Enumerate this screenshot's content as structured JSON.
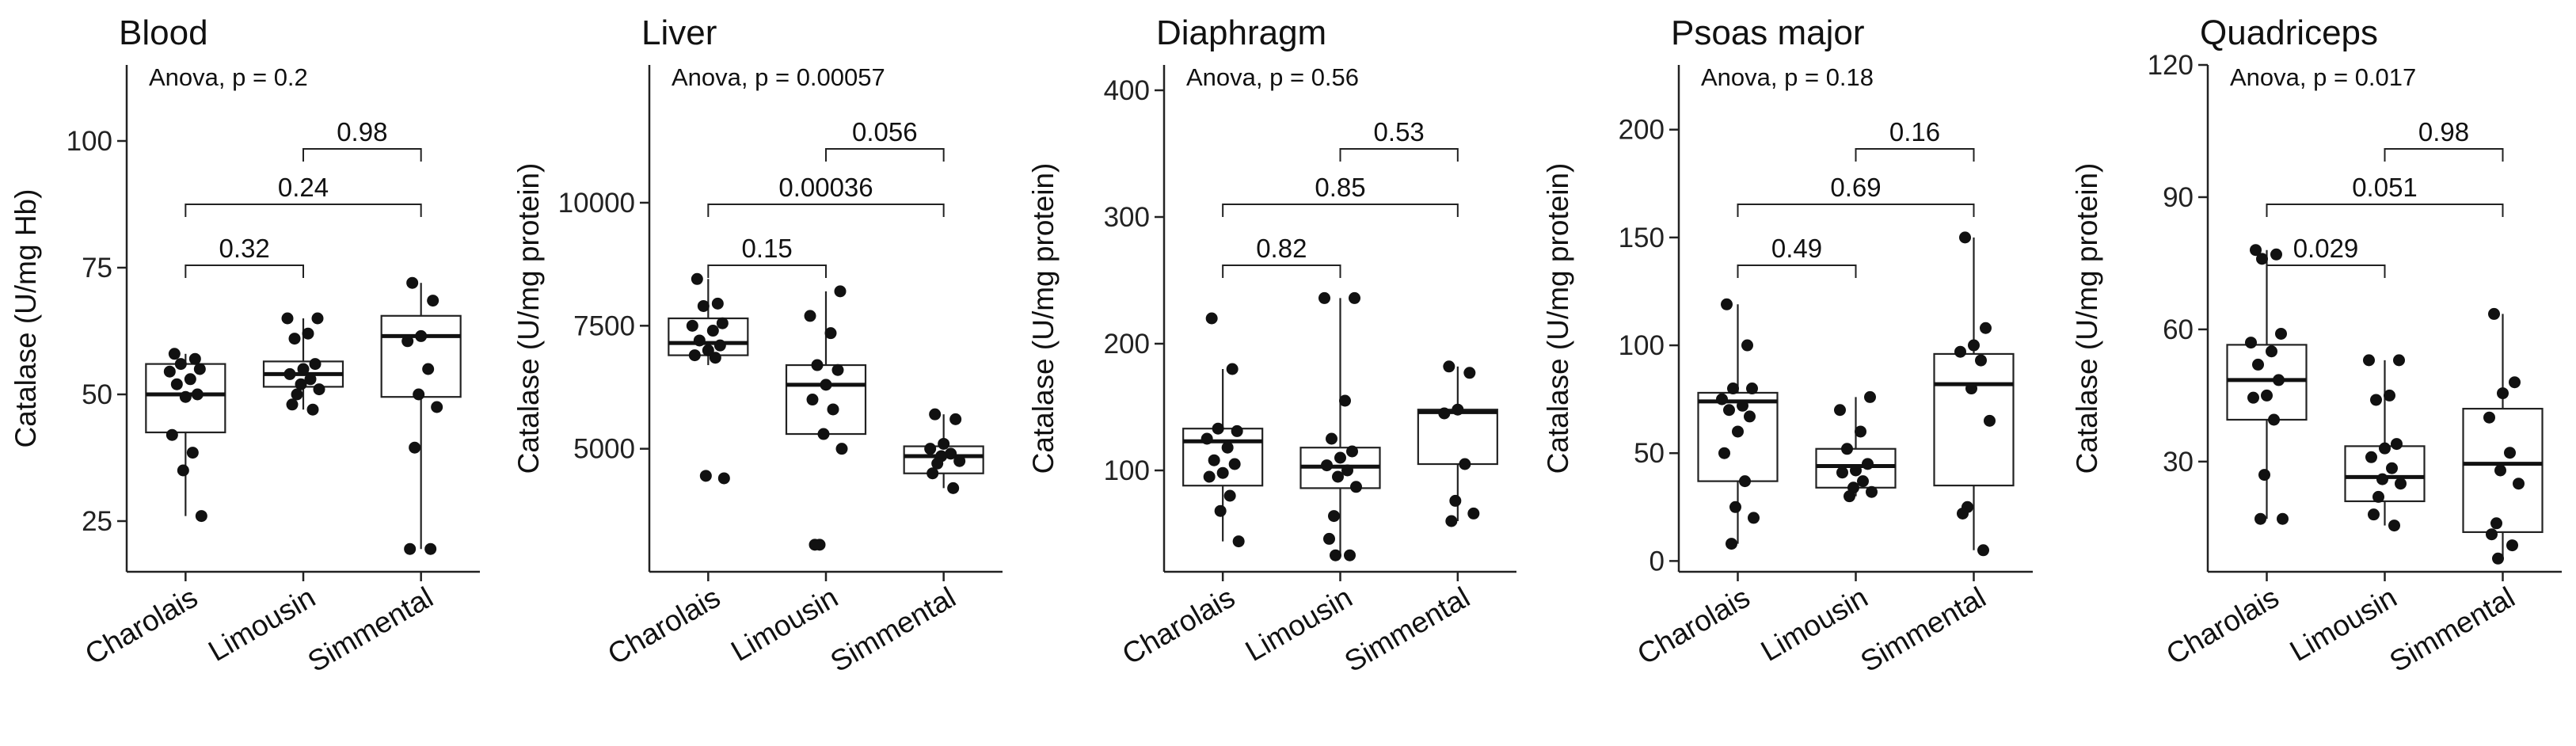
{
  "chart_data": [
    {
      "type": "boxplot",
      "title": "Blood",
      "ylabel": "Catalase (U/mg Hb)",
      "ylim": [
        15,
        115
      ],
      "yticks": [
        "25",
        "50",
        "75",
        "100"
      ],
      "categories": [
        "Charolais",
        "Limousin",
        "Simmental"
      ],
      "anova": "Anova, p = 0.2",
      "boxes": [
        {
          "min": 26,
          "q1": 42.5,
          "median": 50,
          "q3": 56,
          "max": 58
        },
        {
          "min": 47,
          "q1": 51.5,
          "median": 54,
          "q3": 56.5,
          "max": 65
        },
        {
          "min": 19.5,
          "q1": 49.5,
          "median": 61.5,
          "q3": 65.5,
          "max": 72
        }
      ],
      "points": [
        [
          58,
          57,
          56,
          55,
          54.5,
          53,
          52,
          50,
          49.5,
          42,
          38.5,
          35,
          26
        ],
        [
          65,
          65,
          62,
          61,
          56,
          55,
          54,
          53,
          52,
          51,
          50,
          48,
          47
        ],
        [
          72,
          68.5,
          61.5,
          60.5,
          55,
          50,
          47.5,
          39.5,
          19.5,
          19.5
        ]
      ],
      "comparisons": [
        {
          "from": 0,
          "to": 1,
          "label": "0.32",
          "level": 1
        },
        {
          "from": 0,
          "to": 2,
          "label": "0.24",
          "level": 2
        },
        {
          "from": 1,
          "to": 2,
          "label": "0.98",
          "level": 3
        }
      ]
    },
    {
      "type": "boxplot",
      "title": "Liver",
      "ylabel": "Catalase (U/mg protein)",
      "ylim": [
        2500,
        12800
      ],
      "yticks": [
        "5000",
        "7500",
        "10000"
      ],
      "categories": [
        "Charolais",
        "Limousin",
        "Simmental"
      ],
      "anova": "Anova, p = 0.00057",
      "boxes": [
        {
          "min": 6700,
          "q1": 6900,
          "median": 7150,
          "q3": 7650,
          "max": 8450
        },
        {
          "min": 5300,
          "q1": 5300,
          "median": 6300,
          "q3": 6700,
          "max": 8200
        },
        {
          "min": 4200,
          "q1": 4500,
          "median": 4850,
          "q3": 5050,
          "max": 5700
        }
      ],
      "points": [
        [
          8450,
          7950,
          7900,
          7550,
          7500,
          7400,
          7200,
          7100,
          7000,
          6900,
          6850,
          4450,
          4400
        ],
        [
          8200,
          7700,
          7350,
          6700,
          6600,
          6300,
          6000,
          5800,
          5300,
          5000,
          3050,
          3050
        ],
        [
          5700,
          5600,
          5100,
          5000,
          4900,
          4850,
          4750,
          4700,
          4500,
          4200
        ]
      ],
      "comparisons": [
        {
          "from": 0,
          "to": 1,
          "label": "0.15",
          "level": 1
        },
        {
          "from": 0,
          "to": 2,
          "label": "0.00036",
          "level": 2
        },
        {
          "from": 1,
          "to": 2,
          "label": "0.056",
          "level": 3
        }
      ]
    },
    {
      "type": "boxplot",
      "title": "Diaphragm",
      "ylabel": "Catalase (U/mg protein)",
      "ylim": [
        20,
        420
      ],
      "yticks": [
        "100",
        "200",
        "300",
        "400"
      ],
      "categories": [
        "Charolais",
        "Limousin",
        "Simmental"
      ],
      "anova": "Anova, p = 0.56",
      "boxes": [
        {
          "min": 44,
          "q1": 88,
          "median": 123,
          "q3": 133,
          "max": 180
        },
        {
          "min": 33,
          "q1": 86,
          "median": 103,
          "q3": 118,
          "max": 236
        },
        {
          "min": 60,
          "q1": 105,
          "median": 146,
          "q3": 148,
          "max": 182
        }
      ],
      "points": [
        [
          220,
          180,
          133,
          131,
          125,
          118,
          108,
          105,
          98,
          95,
          80,
          68,
          44
        ],
        [
          236,
          236,
          155,
          125,
          115,
          110,
          104,
          100,
          95,
          87,
          64,
          46,
          33,
          33
        ],
        [
          182,
          177,
          148,
          145,
          105,
          76,
          66,
          60
        ]
      ],
      "comparisons": [
        {
          "from": 0,
          "to": 1,
          "label": "0.82",
          "level": 1
        },
        {
          "from": 0,
          "to": 2,
          "label": "0.85",
          "level": 2
        },
        {
          "from": 1,
          "to": 2,
          "label": "0.53",
          "level": 3
        }
      ]
    },
    {
      "type": "boxplot",
      "title": "Psoas major",
      "ylabel": "Catalase (U/mg protein)",
      "ylim": [
        -5,
        230
      ],
      "yticks": [
        "0",
        "50",
        "100",
        "150",
        "200"
      ],
      "categories": [
        "Charolais",
        "Limousin",
        "Simmental"
      ],
      "anova": "Anova, p = 0.18",
      "boxes": [
        {
          "min": 8,
          "q1": 37,
          "median": 74,
          "q3": 78,
          "max": 119
        },
        {
          "min": 30,
          "q1": 34,
          "median": 44,
          "q3": 52,
          "max": 76
        },
        {
          "min": 5,
          "q1": 35,
          "median": 82,
          "q3": 96,
          "max": 150
        }
      ],
      "points": [
        [
          119,
          100,
          80,
          80,
          75,
          72,
          70,
          67,
          60,
          50,
          37,
          25,
          20,
          8
        ],
        [
          76,
          70,
          60,
          52,
          45,
          42,
          41,
          37,
          34,
          32,
          30
        ],
        [
          150,
          108,
          100,
          97,
          93,
          80,
          65,
          25,
          22,
          5
        ]
      ],
      "comparisons": [
        {
          "from": 0,
          "to": 1,
          "label": "0.49",
          "level": 1
        },
        {
          "from": 0,
          "to": 2,
          "label": "0.69",
          "level": 2
        },
        {
          "from": 1,
          "to": 2,
          "label": "0.16",
          "level": 3
        }
      ]
    },
    {
      "type": "boxplot",
      "title": "Quadriceps",
      "ylabel": "Catalase (U/mg protein)",
      "ylim": [
        5,
        120
      ],
      "yticks": [
        "30",
        "60",
        "90",
        "120"
      ],
      "categories": [
        "Charolais",
        "Limousin",
        "Simmental"
      ],
      "anova": "Anova, p = 0.017",
      "boxes": [
        {
          "min": 17,
          "q1": 39.5,
          "median": 48.5,
          "q3": 56.5,
          "max": 78
        },
        {
          "min": 15.5,
          "q1": 21,
          "median": 26.5,
          "q3": 33.5,
          "max": 53
        },
        {
          "min": 8,
          "q1": 14,
          "median": 29.5,
          "q3": 42,
          "max": 63.5
        }
      ],
      "points": [
        [
          78,
          77,
          76,
          59,
          57,
          55,
          52,
          48.5,
          45,
          44.5,
          39.5,
          27,
          17,
          17
        ],
        [
          53,
          53,
          45,
          44,
          34,
          33,
          31,
          28.5,
          26,
          25,
          22,
          18,
          15.5
        ],
        [
          63.5,
          48,
          45.5,
          40,
          32,
          28,
          25,
          16,
          13.5,
          11,
          8
        ]
      ],
      "comparisons": [
        {
          "from": 0,
          "to": 1,
          "label": "0.029",
          "level": 1
        },
        {
          "from": 0,
          "to": 2,
          "label": "0.051",
          "level": 2
        },
        {
          "from": 1,
          "to": 2,
          "label": "0.98",
          "level": 3
        }
      ]
    }
  ]
}
